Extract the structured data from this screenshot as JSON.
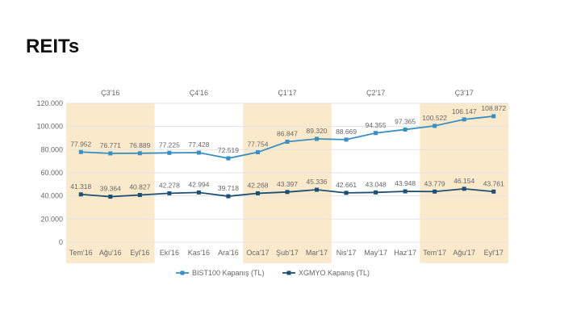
{
  "slide": {
    "title": "REITs"
  },
  "chart_data": {
    "type": "line",
    "title": "REITs",
    "categories": [
      "Tem'16",
      "Ağu'16",
      "Eyl'16",
      "Eki'16",
      "Kas'16",
      "Ara'16",
      "Oca'17",
      "Şub'17",
      "Mar'17",
      "Nis'17",
      "May'17",
      "Haz'17",
      "Tem'17",
      "Ağu'17",
      "Eyl'17"
    ],
    "quarters": [
      {
        "label": "Ç3'16",
        "start": 0,
        "end": 2,
        "shaded": true
      },
      {
        "label": "Ç4'16",
        "start": 3,
        "end": 5,
        "shaded": false
      },
      {
        "label": "Ç1'17",
        "start": 6,
        "end": 8,
        "shaded": true
      },
      {
        "label": "Ç2'17",
        "start": 9,
        "end": 11,
        "shaded": false
      },
      {
        "label": "Ç3'17",
        "start": 12,
        "end": 14,
        "shaded": true
      }
    ],
    "series": [
      {
        "name": "BIST100 Kapanış (TL)",
        "color": "#3a8fc2",
        "marker": "square",
        "values": [
          77952,
          76771,
          76889,
          77225,
          77428,
          72519,
          77754,
          86847,
          89320,
          88669,
          94355,
          97365,
          100522,
          106147,
          108872
        ],
        "labels": [
          "77.952",
          "76.771",
          "76.889",
          "77.225",
          "77.428",
          "72.519",
          "77.754",
          "86.847",
          "89.320",
          "88.669",
          "94.355",
          "97.365",
          "100.522",
          "106.147",
          "108.872"
        ]
      },
      {
        "name": "XGMYO Kapanış (TL)",
        "color": "#1d4f73",
        "marker": "square",
        "values": [
          41318,
          39364,
          40827,
          42278,
          42994,
          39718,
          42268,
          43397,
          45336,
          42661,
          43048,
          43948,
          43779,
          46154,
          43761
        ],
        "labels": [
          "41.318",
          "39.364",
          "40.827",
          "42.278",
          "42.994",
          "39.718",
          "42.268",
          "43.397",
          "45.336",
          "42.661",
          "43.048",
          "43.948",
          "43.779",
          "46.154",
          "43.761"
        ]
      }
    ],
    "y_ticks": [
      0,
      20000,
      40000,
      60000,
      80000,
      100000,
      120000
    ],
    "y_tick_labels": [
      "0",
      "20.000",
      "40.000",
      "60.000",
      "80.000",
      "100.000",
      "120.000"
    ],
    "ylim": [
      0,
      120000
    ],
    "grid": true,
    "legend_placement": "bottom-center",
    "colors": {
      "shade": "#fbe9cc",
      "grid": "#e3e3e3",
      "text": "#666666"
    }
  }
}
